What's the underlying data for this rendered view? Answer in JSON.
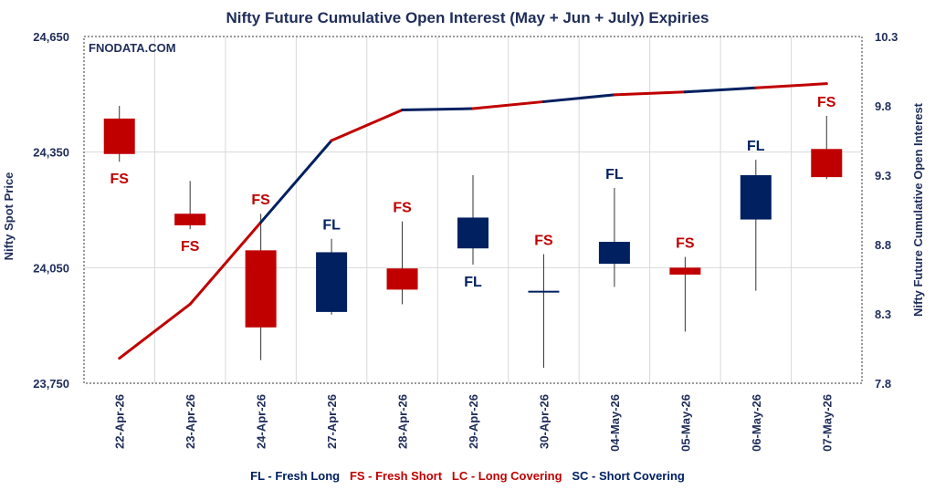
{
  "chart_data": {
    "type": "candlestick+line",
    "title": "Nifty Future Cumulative Open Interest (May + Jun + July) Expiries",
    "watermark": "FNODATA.COM",
    "ylabel_left": "Nifty Spot Price",
    "ylabel_right": "Nifty Future Cumulative Open Interest",
    "y_left_ticks": [
      "24,650",
      "24,350",
      "24,050",
      "23,750"
    ],
    "y_left_tick_values": [
      24650,
      24350,
      24050,
      23750
    ],
    "y_left_range": [
      23750,
      24650
    ],
    "y_right_ticks": [
      "10.3",
      "9.8",
      "9.3",
      "8.8",
      "8.3",
      "7.8"
    ],
    "y_right_tick_values": [
      10.3,
      9.8,
      9.3,
      8.8,
      8.3,
      7.8
    ],
    "y_right_range": [
      7.8,
      10.3
    ],
    "grid": true,
    "categories": [
      "22-Apr-26",
      "23-Apr-26",
      "24-Apr-26",
      "27-Apr-26",
      "28-Apr-26",
      "29-Apr-26",
      "30-Apr-26",
      "04-May-26",
      "05-May-26",
      "06-May-26",
      "07-May-26"
    ],
    "candles": [
      {
        "open": 24437,
        "high": 24470,
        "low": 24325,
        "close": 24345,
        "label": "FS",
        "color": "#c00000"
      },
      {
        "open": 24190,
        "high": 24275,
        "low": 24150,
        "close": 24160,
        "label": "FS",
        "color": "#c00000"
      },
      {
        "open": 24095,
        "high": 24190,
        "low": 23810,
        "close": 23895,
        "label": "FS",
        "color": "#c00000"
      },
      {
        "open": 23935,
        "high": 24125,
        "low": 23928,
        "close": 24090,
        "label": "FL",
        "color": "#002060"
      },
      {
        "open": 24048,
        "high": 24170,
        "low": 23955,
        "close": 23993,
        "label": "FS",
        "color": "#c00000"
      },
      {
        "open": 24100,
        "high": 24290,
        "low": 24058,
        "close": 24180,
        "label": "FL",
        "color": "#002060"
      },
      {
        "open": 23988,
        "high": 24085,
        "low": 23790,
        "close": 23990,
        "label": "FS",
        "color": "#002060"
      },
      {
        "open": 24060,
        "high": 24257,
        "low": 24000,
        "close": 24117,
        "label": "FL",
        "color": "#002060"
      },
      {
        "open": 24050,
        "high": 24078,
        "low": 23884,
        "close": 24032,
        "label": "FS",
        "color": "#c00000"
      },
      {
        "open": 24175,
        "high": 24330,
        "low": 23990,
        "close": 24290,
        "label": "FL",
        "color": "#002060"
      },
      {
        "open": 24358,
        "high": 24444,
        "low": 24280,
        "close": 24285,
        "label": "FS",
        "color": "#c00000"
      }
    ],
    "open_interest": {
      "values": [
        7.98,
        8.37,
        8.96,
        9.55,
        9.77,
        9.78,
        9.83,
        9.88,
        9.9,
        9.93,
        9.96
      ],
      "segment_colors": [
        "#c00000",
        "#c00000",
        "#002060",
        "#c00000",
        "#002060",
        "#c00000",
        "#002060",
        "#c00000",
        "#002060",
        "#c00000"
      ]
    },
    "legend": [
      {
        "code": "FL",
        "text": "FL - Fresh Long",
        "color": "#002060"
      },
      {
        "code": "FS",
        "text": "FS - Fresh Short",
        "color": "#c00000"
      },
      {
        "code": "LC",
        "text": "LC - Long Covering",
        "color": "#c00000"
      },
      {
        "code": "SC",
        "text": "SC - Short Covering",
        "color": "#002060"
      }
    ]
  }
}
